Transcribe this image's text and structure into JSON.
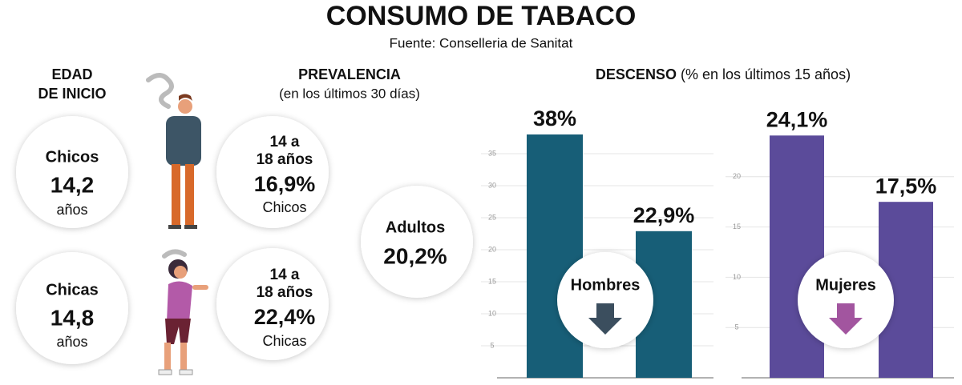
{
  "header": {
    "title": "CONSUMO DE TABACO",
    "source": "Fuente: Conselleria de Sanitat"
  },
  "edad": {
    "title_lines": [
      "EDAD",
      "DE INICIO"
    ],
    "items": [
      {
        "label": "Chicos",
        "value": "14,2",
        "unit": "años"
      },
      {
        "label": "Chicas",
        "value": "14,8",
        "unit": "años"
      }
    ]
  },
  "prevalencia": {
    "title": "PREVALENCIA",
    "subtitle": "(en los últimos 30 días)",
    "items": [
      {
        "age_lines": [
          "14 a",
          "18 años"
        ],
        "value": "16,9%",
        "group": "Chicos"
      },
      {
        "age_lines": [
          "14 a",
          "18 años"
        ],
        "value": "22,4%",
        "group": "Chicas"
      }
    ],
    "adultos": {
      "label": "Adultos",
      "value": "20,2%"
    }
  },
  "descenso": {
    "title": "DESCENSO",
    "subtitle": "(% en los últimos 15 años)"
  },
  "chart_data": [
    {
      "type": "bar",
      "label": "Hombres",
      "color": "#175e77",
      "arrow_color": "#3b4e5e",
      "values": [
        38,
        22.9
      ],
      "value_labels": [
        "38%",
        "22,9%"
      ],
      "ylim": [
        0,
        40
      ],
      "yticks": [
        5,
        10,
        15,
        20,
        25,
        30,
        35
      ],
      "grid": true
    },
    {
      "type": "bar",
      "label": "Mujeres",
      "color": "#5b4b9a",
      "arrow_color": "#a2559f",
      "values": [
        24.1,
        17.5
      ],
      "value_labels": [
        "24,1%",
        "17,5%"
      ],
      "ylim": [
        0,
        25
      ],
      "yticks": [
        5,
        10,
        15,
        20
      ],
      "grid": true
    }
  ]
}
